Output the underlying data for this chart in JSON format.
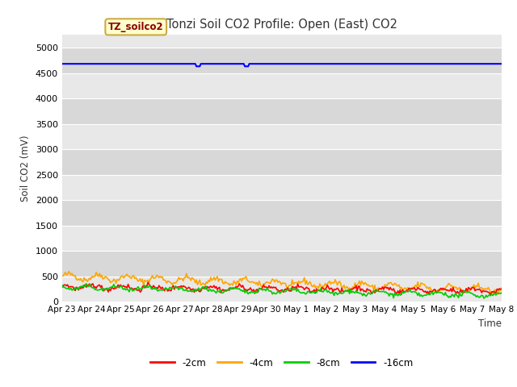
{
  "title": "Tonzi Soil CO2 Profile: Open (East) CO2",
  "xlabel": "Time",
  "ylabel": "Soil CO2 (mV)",
  "ylim": [
    0,
    5250
  ],
  "yticks": [
    0,
    500,
    1000,
    1500,
    2000,
    2500,
    3000,
    3500,
    4000,
    4500,
    5000
  ],
  "xtick_labels": [
    "Apr 23",
    "Apr 24",
    "Apr 25",
    "Apr 26",
    "Apr 27",
    "Apr 28",
    "Apr 29",
    "Apr 30",
    "May 1",
    "May 2",
    "May 3",
    "May 4",
    "May 5",
    "May 6",
    "May 7",
    "May 8"
  ],
  "colors": {
    "2cm": "#ff0000",
    "4cm": "#ffa500",
    "8cm": "#00cc00",
    "16cm": "#0000ff"
  },
  "legend_label": "TZ_soilco2",
  "legend_bg": "#ffffcc",
  "legend_border": "#ccaa44",
  "bg_color": "#e8e8e8",
  "bg_color_alt": "#d8d8d8",
  "legend_entries": [
    "-2cm",
    "-4cm",
    "-8cm",
    "-16cm"
  ],
  "num_points": 400,
  "days": 15,
  "seed": 42,
  "line16cm_value": 4680
}
